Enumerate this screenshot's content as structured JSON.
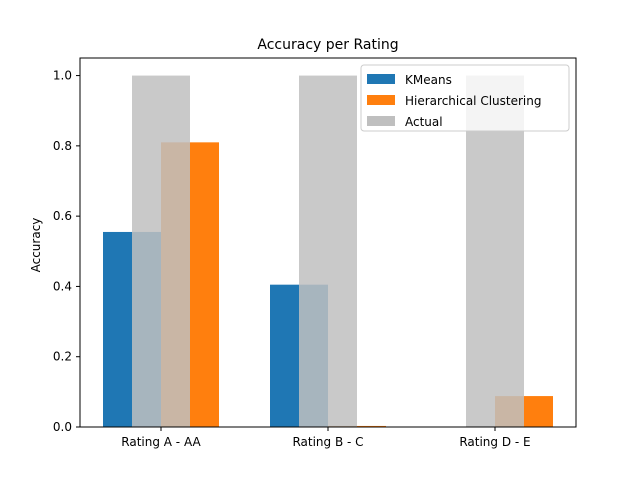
{
  "chart_data": {
    "type": "bar",
    "title": "Accuracy per Rating",
    "xlabel": "",
    "ylabel": "Accuracy",
    "categories": [
      "Rating A - AA",
      "Rating B - C",
      "Rating D - E"
    ],
    "ylim": [
      0,
      1.05
    ],
    "yticks": [
      "0.0",
      "0.2",
      "0.4",
      "0.6",
      "0.8",
      "1.0"
    ],
    "grid": false,
    "legend_position": "top-right",
    "series": [
      {
        "name": "KMeans",
        "color": "#1f77b4",
        "values": [
          0.555,
          0.405,
          0.0
        ]
      },
      {
        "name": "Hierarchical Clustering",
        "color": "#ff7f0e",
        "values": [
          0.81,
          0.003,
          0.088
        ]
      },
      {
        "name": "Actual",
        "color": "#bfbfbf",
        "opacity": 0.85,
        "values": [
          1.0,
          1.0,
          1.0
        ]
      }
    ]
  }
}
